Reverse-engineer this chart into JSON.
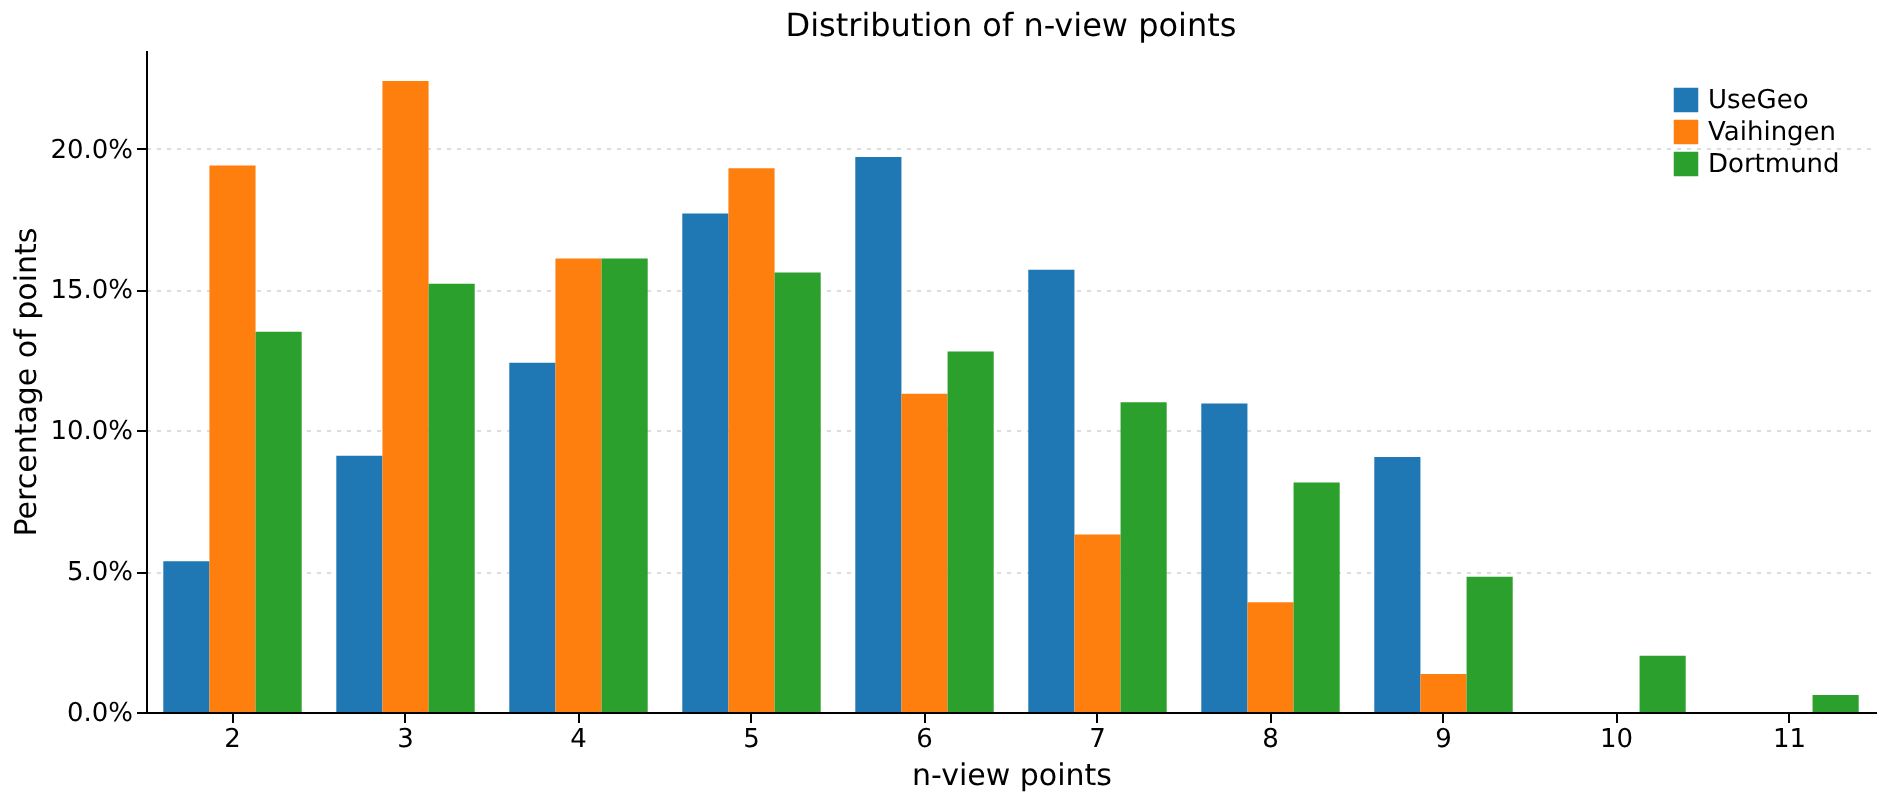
{
  "chart_data": {
    "type": "bar",
    "title": "Distribution of n-view points",
    "xlabel": "n-view points",
    "ylabel": "Percentage of points",
    "categories": [
      "2",
      "3",
      "4",
      "5",
      "6",
      "7",
      "8",
      "9",
      "10",
      "11"
    ],
    "series": [
      {
        "name": "UseGeo",
        "color": "#1f77b4",
        "values": [
          5.35,
          9.1,
          12.4,
          17.7,
          19.7,
          15.7,
          10.95,
          9.05,
          0,
          0
        ]
      },
      {
        "name": "Vaihingen",
        "color": "#ff7f0e",
        "values": [
          19.4,
          22.4,
          16.1,
          19.3,
          11.3,
          6.3,
          3.9,
          1.35,
          0,
          0
        ]
      },
      {
        "name": "Dortmund",
        "color": "#2ca02c",
        "values": [
          13.5,
          15.2,
          16.1,
          15.6,
          12.8,
          11.0,
          8.15,
          4.8,
          2.0,
          0.6
        ]
      }
    ],
    "ylim": [
      0,
      23.5
    ],
    "yticks": [
      {
        "value": 0,
        "label": "0.0%"
      },
      {
        "value": 5,
        "label": "5.0%"
      },
      {
        "value": 10,
        "label": "10.0%"
      },
      {
        "value": 15,
        "label": "15.0%"
      },
      {
        "value": 20,
        "label": "20.0%"
      }
    ],
    "grid": "y",
    "legend": "top right"
  }
}
